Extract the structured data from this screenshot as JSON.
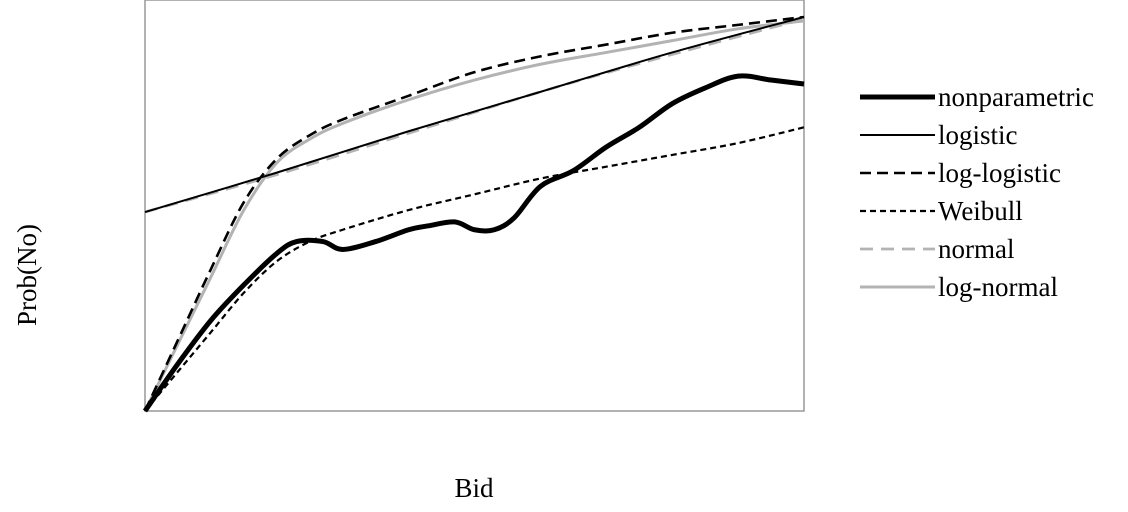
{
  "chart_data": {
    "type": "line",
    "title": "",
    "xlabel": "Bid",
    "ylabel": "Prob(No)",
    "xlim": [
      0,
      1
    ],
    "ylim": [
      0,
      1
    ],
    "grid": false,
    "ticks": false,
    "legend_position": "right",
    "series": [
      {
        "name": "nonparametric",
        "color": "#000000",
        "style": "solid-thick",
        "x": [
          0,
          0.05,
          0.1,
          0.15,
          0.2,
          0.23,
          0.27,
          0.3,
          0.35,
          0.4,
          0.43,
          0.47,
          0.5,
          0.53,
          0.56,
          0.6,
          0.65,
          0.7,
          0.75,
          0.8,
          0.85,
          0.9,
          0.95,
          1.0
        ],
        "y": [
          0,
          0.12,
          0.23,
          0.32,
          0.4,
          0.43,
          0.43,
          0.41,
          0.43,
          0.46,
          0.47,
          0.48,
          0.46,
          0.46,
          0.49,
          0.57,
          0.61,
          0.67,
          0.72,
          0.78,
          0.82,
          0.85,
          0.84,
          0.83
        ]
      },
      {
        "name": "logistic",
        "color": "#000000",
        "style": "solid-thin",
        "x": [
          0,
          0.2,
          0.4,
          0.6,
          0.8,
          1.0
        ],
        "y": [
          0.505,
          0.605,
          0.71,
          0.81,
          0.91,
          1.0
        ]
      },
      {
        "name": "log-logistic",
        "color": "#000000",
        "style": "dashed-long",
        "x": [
          0,
          0.05,
          0.1,
          0.15,
          0.2,
          0.25,
          0.3,
          0.4,
          0.5,
          0.6,
          0.7,
          0.8,
          0.9,
          1.0
        ],
        "y": [
          0,
          0.18,
          0.36,
          0.53,
          0.64,
          0.7,
          0.74,
          0.8,
          0.86,
          0.9,
          0.93,
          0.96,
          0.98,
          1.0
        ]
      },
      {
        "name": "Weibull",
        "color": "#000000",
        "style": "dashed-short",
        "x": [
          0,
          0.05,
          0.1,
          0.15,
          0.2,
          0.25,
          0.3,
          0.4,
          0.5,
          0.6,
          0.7,
          0.8,
          0.9,
          1.0
        ],
        "y": [
          0,
          0.1,
          0.2,
          0.3,
          0.38,
          0.43,
          0.46,
          0.51,
          0.55,
          0.59,
          0.62,
          0.65,
          0.68,
          0.72
        ]
      },
      {
        "name": "normal",
        "color": "#b3b3b3",
        "style": "dashed-gray",
        "x": [
          0,
          0.2,
          0.4,
          0.6,
          0.8,
          1.0
        ],
        "y": [
          0.505,
          0.6,
          0.705,
          0.81,
          0.905,
          0.995
        ]
      },
      {
        "name": "log-normal",
        "color": "#b3b3b3",
        "style": "solid-gray",
        "x": [
          0,
          0.05,
          0.1,
          0.15,
          0.2,
          0.25,
          0.3,
          0.4,
          0.5,
          0.6,
          0.7,
          0.8,
          0.9,
          1.0
        ],
        "y": [
          0,
          0.17,
          0.34,
          0.51,
          0.63,
          0.69,
          0.73,
          0.79,
          0.84,
          0.88,
          0.91,
          0.94,
          0.97,
          0.99
        ]
      }
    ]
  }
}
